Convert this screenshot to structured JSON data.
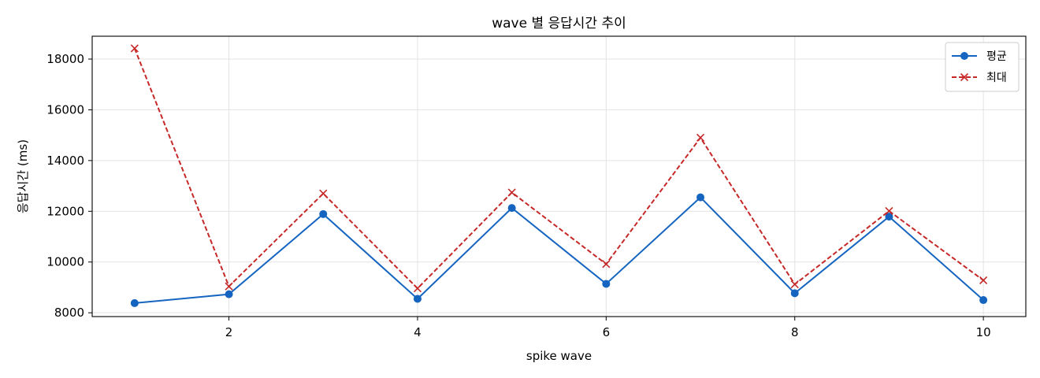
{
  "chart_data": {
    "type": "line",
    "title": "wave 별 응답시간 추이",
    "xlabel": "spike wave",
    "ylabel": "응답시간 (ms)",
    "x": [
      1,
      2,
      3,
      4,
      5,
      6,
      7,
      8,
      9,
      10
    ],
    "xlim": [
      0.55,
      10.45
    ],
    "ylim": [
      7850,
      18900
    ],
    "xticks": [
      2,
      4,
      6,
      8,
      10
    ],
    "yticks": [
      8000,
      10000,
      12000,
      14000,
      16000,
      18000
    ],
    "grid": true,
    "legend_position": "top-right",
    "series": [
      {
        "name": "평균",
        "color": "#1565c0",
        "line_style": "solid",
        "marker": "circle",
        "values": [
          8380,
          8730,
          11890,
          8550,
          12130,
          9140,
          12550,
          8770,
          11790,
          8500
        ]
      },
      {
        "name": "최대",
        "color": "#c62828",
        "line_style": "dashed",
        "marker": "x",
        "values": [
          18420,
          9040,
          12700,
          8960,
          12740,
          9920,
          14900,
          9120,
          12010,
          9280
        ]
      }
    ]
  }
}
